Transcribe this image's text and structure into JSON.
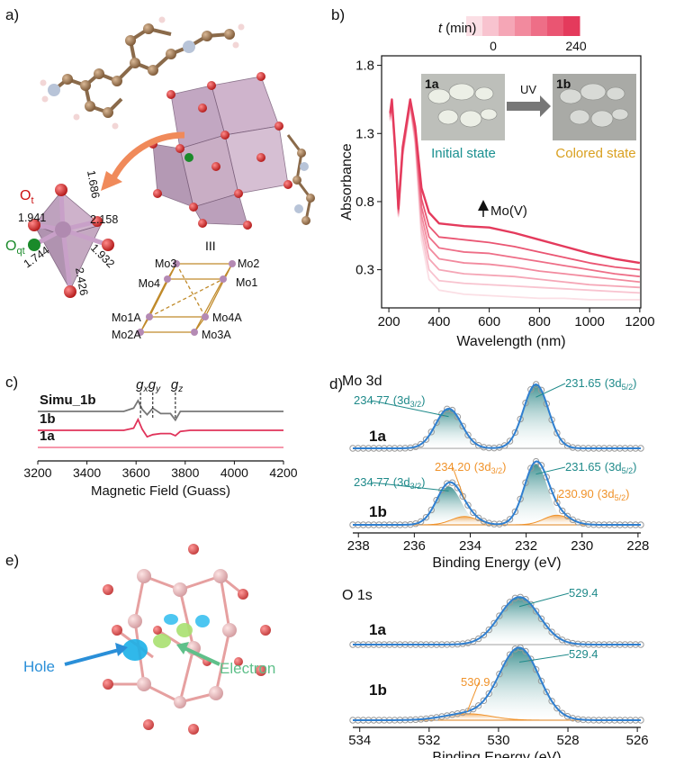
{
  "panel_labels": [
    "a)",
    "b)",
    "c)",
    "d)",
    "e)"
  ],
  "structure_a": {
    "o_t": {
      "main": "O",
      "sub": "t"
    },
    "o_qt": {
      "main": "O",
      "sub": "qt"
    },
    "bond_lengths": [
      "1.686",
      "1.941",
      "2.158",
      "1.744",
      "1.932",
      "2.426"
    ],
    "cluster_label": "III",
    "mo_labels": [
      "Mo3",
      "Mo2",
      "Mo4",
      "Mo1",
      "Mo1A",
      "Mo4A",
      "Mo2A",
      "Mo3A"
    ]
  },
  "structure_e": {
    "hole": "Hole",
    "electron": "Electron"
  },
  "chart_data": [
    {
      "type": "line",
      "x_label": "Wavelength (nm)",
      "y_label": "Absorbance",
      "x": [
        205,
        212,
        225,
        238,
        255,
        285,
        305,
        330,
        360,
        400,
        500,
        600,
        700,
        800,
        900,
        1000,
        1100,
        1200
      ],
      "xlim": [
        171,
        1204
      ],
      "ylim": [
        0.02,
        1.87
      ],
      "xticks": [
        200,
        400,
        600,
        800,
        1000,
        1200
      ],
      "yticks": [
        0.3,
        0.8,
        1.3,
        1.8
      ],
      "colorbar": {
        "var": "t",
        "unit": "(min)",
        "ticks": [
          0,
          240
        ]
      },
      "series": [
        {
          "color": "#fbdfe5",
          "values": [
            1.39,
            1.49,
            1.13,
            0.69,
            1.13,
            1.49,
            1.22,
            0.52,
            0.23,
            0.15,
            0.12,
            0.11,
            0.1,
            0.09,
            0.09,
            0.08,
            0.08,
            0.08
          ]
        },
        {
          "color": "#f8c3cf",
          "values": [
            1.4,
            1.5,
            1.14,
            0.7,
            1.14,
            1.5,
            1.24,
            0.58,
            0.3,
            0.22,
            0.2,
            0.19,
            0.18,
            0.17,
            0.16,
            0.15,
            0.14,
            0.13
          ]
        },
        {
          "color": "#f5a6b6",
          "values": [
            1.41,
            1.51,
            1.15,
            0.71,
            1.15,
            1.51,
            1.26,
            0.64,
            0.38,
            0.3,
            0.27,
            0.26,
            0.25,
            0.23,
            0.21,
            0.19,
            0.18,
            0.17
          ]
        },
        {
          "color": "#f28a9e",
          "values": [
            1.42,
            1.52,
            1.16,
            0.72,
            1.16,
            1.52,
            1.28,
            0.7,
            0.46,
            0.38,
            0.35,
            0.34,
            0.32,
            0.29,
            0.27,
            0.25,
            0.23,
            0.21
          ]
        },
        {
          "color": "#ee6e87",
          "values": [
            1.43,
            1.53,
            1.17,
            0.73,
            1.17,
            1.53,
            1.3,
            0.76,
            0.54,
            0.46,
            0.43,
            0.42,
            0.39,
            0.36,
            0.33,
            0.3,
            0.27,
            0.25
          ]
        },
        {
          "color": "#ea5572",
          "values": [
            1.44,
            1.54,
            1.18,
            0.74,
            1.18,
            1.54,
            1.32,
            0.82,
            0.62,
            0.54,
            0.52,
            0.5,
            0.47,
            0.43,
            0.39,
            0.35,
            0.32,
            0.3
          ]
        },
        {
          "color": "#e43a5c",
          "values": [
            1.45,
            1.55,
            1.2,
            0.75,
            1.2,
            1.55,
            1.35,
            0.9,
            0.72,
            0.64,
            0.62,
            0.61,
            0.57,
            0.52,
            0.47,
            0.42,
            0.38,
            0.35
          ]
        }
      ],
      "inset": {
        "left_label": "1a",
        "right_label": "1b",
        "arrow_label": "UV",
        "left_caption": "Initial state",
        "right_caption": "Colored state"
      },
      "annotation": "Mo(V)"
    },
    {
      "type": "line",
      "x_label": "Magnetic Field (Guass)",
      "x": [
        3200,
        3550,
        3590,
        3608,
        3625,
        3645,
        3668,
        3700,
        3740,
        3760,
        3780,
        3820,
        4200
      ],
      "xlim": [
        3200,
        4200
      ],
      "xticks": [
        3200,
        3400,
        3600,
        3800,
        4000,
        4200
      ],
      "series": [
        {
          "name": "Simu_1b",
          "color": "#777777",
          "values": [
            0,
            0,
            0.3,
            1,
            0.2,
            -0.3,
            0.3,
            -0.2,
            -0.2,
            -0.8,
            0,
            0,
            0
          ]
        },
        {
          "name": "1b",
          "color": "#e0335a",
          "values": [
            0,
            0,
            0.2,
            1,
            0.1,
            -0.6,
            -0.4,
            -0.3,
            -0.3,
            -0.5,
            -0.1,
            0,
            0
          ]
        },
        {
          "name": "1a",
          "color": "#f48aa0",
          "values": [
            0,
            0,
            0,
            0,
            0,
            0,
            0,
            0,
            0,
            0,
            0,
            0,
            0
          ]
        }
      ],
      "g_markers": [
        {
          "symbol": "g",
          "sub": "x",
          "x": 3618
        },
        {
          "symbol": "g",
          "sub": "y",
          "x": 3668
        },
        {
          "symbol": "g",
          "sub": "z",
          "x": 3760
        }
      ]
    },
    {
      "type": "xps",
      "title": "Mo 3d",
      "x_label": "Binding Energy (eV)",
      "xlim": [
        238.2,
        227.9
      ],
      "xticks": [
        238,
        236,
        234,
        232,
        230,
        228
      ],
      "spectra": [
        {
          "name": "1a",
          "peaks": [
            {
              "center": 234.77,
              "label": "234.77",
              "orbital": "(3d",
              "sub": "3/2",
              "close": ")",
              "height": 0.62,
              "fwhm": 1.1,
              "color": "#1f8a8a"
            },
            {
              "center": 231.65,
              "label": "231.65",
              "orbital": "(3d",
              "sub": "5/2",
              "close": ")",
              "height": 1.0,
              "fwhm": 1.05,
              "color": "#1f8a8a"
            }
          ]
        },
        {
          "name": "1b",
          "peaks": [
            {
              "center": 234.77,
              "label": "234.77",
              "orbital": "(3d",
              "sub": "3/2",
              "close": ")",
              "height": 0.6,
              "fwhm": 1.05,
              "color": "#1f8a8a"
            },
            {
              "center": 231.65,
              "label": "231.65",
              "orbital": "(3d",
              "sub": "5/2",
              "close": ")",
              "height": 0.95,
              "fwhm": 1.0,
              "color": "#1f8a8a"
            },
            {
              "center": 234.2,
              "label": "234.20",
              "orbital": "(3d",
              "sub": "3/2",
              "close": ")",
              "height": 0.13,
              "fwhm": 1.1,
              "color": "#f0932b"
            },
            {
              "center": 230.9,
              "label": "230.90",
              "orbital": "(3d",
              "sub": "5/2",
              "close": ")",
              "height": 0.15,
              "fwhm": 1.1,
              "color": "#f0932b"
            }
          ]
        }
      ],
      "fit_color": "#2f7fd0"
    },
    {
      "type": "xps",
      "title": "O 1s",
      "x_label": "Binding Energy (eV)",
      "xlim": [
        534.2,
        525.9
      ],
      "xticks": [
        534,
        532,
        530,
        528,
        526
      ],
      "spectra": [
        {
          "name": "1a",
          "peaks": [
            {
              "center": 529.4,
              "label": "529.4",
              "height": 0.66,
              "fwhm": 1.35,
              "color": "#1f8a8a"
            }
          ]
        },
        {
          "name": "1b",
          "peaks": [
            {
              "center": 529.4,
              "label": "529.4",
              "height": 1.0,
              "fwhm": 1.35,
              "color": "#1f8a8a"
            },
            {
              "center": 530.9,
              "label": "530.9",
              "height": 0.09,
              "fwhm": 1.6,
              "color": "#f0932b"
            }
          ]
        }
      ],
      "fit_color": "#2f7fd0"
    }
  ]
}
